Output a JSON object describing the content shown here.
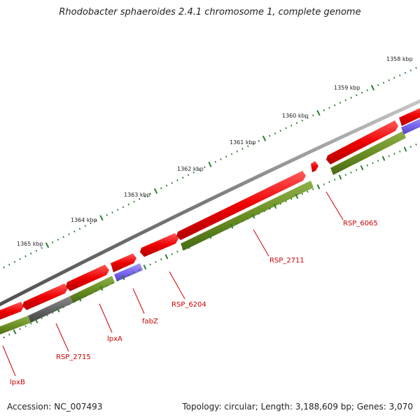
{
  "title": "Rhodobacter sphaeroides 2.4.1 chromosome 1, complete genome",
  "footer": {
    "accession": "Accession: NC_007493",
    "stats": "Topology: circular; Length: 3,188,609 bp; Genes: 3,070"
  },
  "colors": {
    "backbone": "#8a8a8a",
    "forward_gene": "#ee0000",
    "cds_green": "#6b8e23",
    "cds_blue": "#7b68ee",
    "cds_gray": "#666666",
    "tick": "#2e7d32",
    "label": "#cc0000"
  },
  "kbp_labels": [
    "1358 kbp",
    "1359 kbp",
    "1360 kbp",
    "1361 kbp",
    "1362 kbp",
    "1363 kbp",
    "1364 kbp",
    "1365 kbp"
  ],
  "gene_labels": [
    "RSP_6065",
    "RSP_2711",
    "RSP_6204",
    "fabZ",
    "lpxA",
    "RSP_2715",
    "lpxB"
  ]
}
